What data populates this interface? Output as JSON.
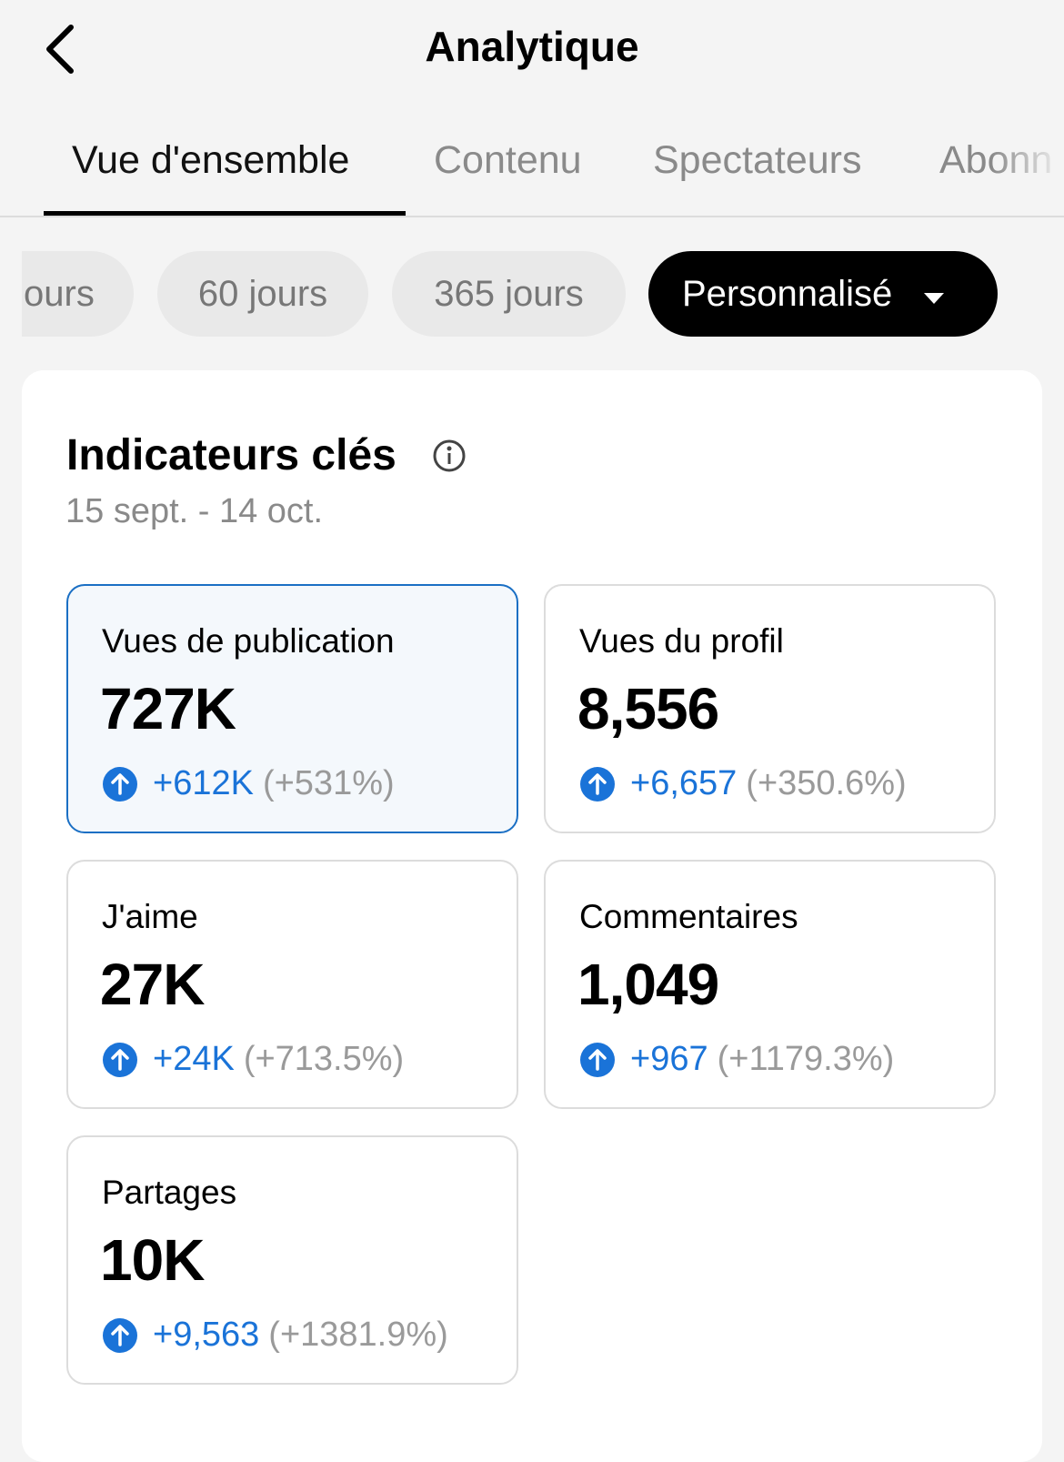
{
  "header": {
    "title": "Analytique"
  },
  "tabs": [
    "Vue d'ensemble",
    "Contenu",
    "Spectateurs",
    "Abonn"
  ],
  "filters": [
    "ours",
    "60 jours",
    "365 jours",
    "Personnalisé"
  ],
  "panel": {
    "title": "Indicateurs clés",
    "date_range": "15 sept. - 14 oct.",
    "metrics": [
      {
        "label": "Vues de publication",
        "value": "727K",
        "change": "+612K",
        "percent": "(+531%)"
      },
      {
        "label": "Vues du profil",
        "value": "8,556",
        "change": "+6,657",
        "percent": "(+350.6%)"
      },
      {
        "label": "J'aime",
        "value": "27K",
        "change": "+24K",
        "percent": "(+713.5%)"
      },
      {
        "label": "Commentaires",
        "value": "1,049",
        "change": "+967",
        "percent": "(+1179.3%)"
      },
      {
        "label": "Partages",
        "value": "10K",
        "change": "+9,563",
        "percent": "(+1381.9%)"
      }
    ]
  }
}
